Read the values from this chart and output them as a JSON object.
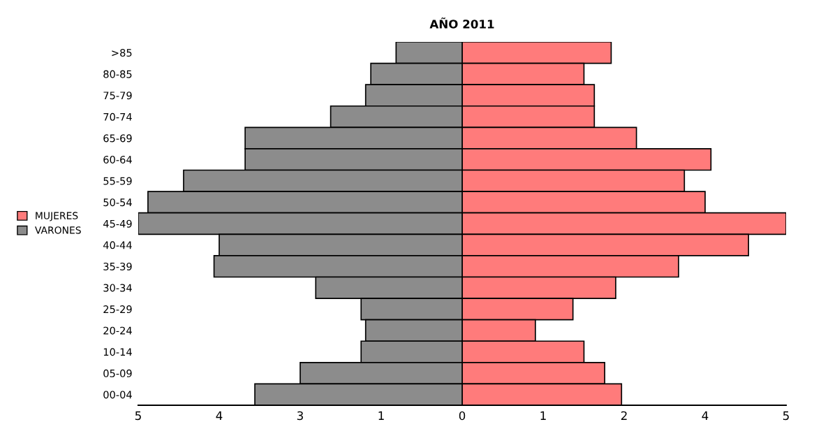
{
  "chart_data": {
    "type": "bar",
    "orientation": "horizontal",
    "title": "AÑO 2011",
    "categories": [
      ">85",
      "80-85",
      "75-79",
      "70-74",
      "65-69",
      "60-64",
      "55-59",
      "50-54",
      "45-49",
      "40-44",
      "35-39",
      "30-34",
      "25-29",
      "20-24",
      "10-14",
      "05-09",
      "00-04"
    ],
    "series": [
      {
        "name": "MUJERES",
        "color": "#ff7b7b",
        "values": [
          2.3,
          1.88,
          2.04,
          2.04,
          2.69,
          3.84,
          3.43,
          3.75,
          5.0,
          4.42,
          3.34,
          2.37,
          1.71,
          1.13,
          1.88,
          2.2,
          2.46
        ]
      },
      {
        "name": "VARONES",
        "color": "#8c8c8c",
        "values": [
          -1.02,
          -1.41,
          -1.49,
          -2.03,
          -3.35,
          -3.35,
          -4.3,
          -4.85,
          -5.0,
          -3.75,
          -3.83,
          -2.26,
          -1.56,
          -1.49,
          -1.56,
          -2.5,
          -3.2
        ]
      }
    ],
    "xlim": [
      -5,
      5
    ],
    "xticks": [
      {
        "value": -5,
        "label": "5"
      },
      {
        "value": -3.75,
        "label": "4"
      },
      {
        "value": -2.5,
        "label": "3"
      },
      {
        "value": -1.25,
        "label": "1"
      },
      0,
      {
        "value": 1.25,
        "label": "1"
      },
      {
        "value": 2.5,
        "label": "2"
      },
      {
        "value": 3.75,
        "label": "4"
      },
      5
    ],
    "grid": false,
    "legend": "left",
    "stacked": true
  }
}
